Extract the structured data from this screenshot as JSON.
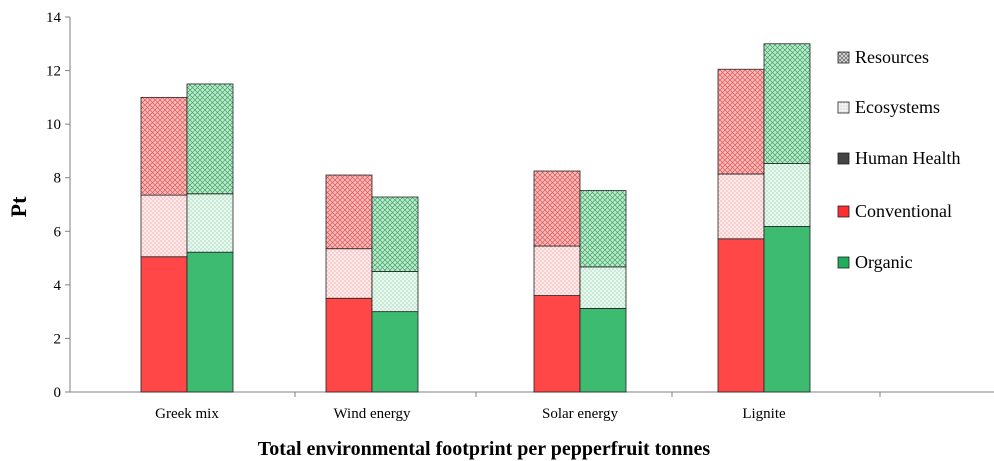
{
  "chart_data": {
    "type": "bar",
    "stacked": true,
    "title": "",
    "xlabel": "Total environmental footprint per pepperfruit  tonnes",
    "ylabel": "Pt",
    "ylim": [
      0,
      14
    ],
    "yticks": [
      0,
      2,
      4,
      6,
      8,
      10,
      12,
      14
    ],
    "categories": [
      "Greek mix",
      "Wind energy",
      "Solar energy",
      "Lignite"
    ],
    "grid": false,
    "legend_position": "right",
    "legend": [
      "Resources",
      "Ecosystems",
      "Human Health",
      "Conventional",
      "Organic"
    ],
    "groups": [
      {
        "name": "Conventional",
        "color": "#ff4747",
        "stack": [
          {
            "component": "Human Health",
            "values": [
              5.05,
              3.5,
              3.6,
              5.72
            ]
          },
          {
            "component": "Ecosystems",
            "values": [
              2.3,
              1.85,
              1.85,
              2.42
            ]
          },
          {
            "component": "Resources",
            "values": [
              3.65,
              2.75,
              2.8,
              3.91
            ]
          }
        ]
      },
      {
        "name": "Organic",
        "color": "#3dbb71",
        "stack": [
          {
            "component": "Human Health",
            "values": [
              5.22,
              3.0,
              3.12,
              6.18
            ]
          },
          {
            "component": "Ecosystems",
            "values": [
              2.18,
              1.5,
              1.55,
              2.35
            ]
          },
          {
            "component": "Resources",
            "values": [
              4.1,
              2.78,
              2.85,
              4.47
            ]
          }
        ]
      }
    ]
  }
}
